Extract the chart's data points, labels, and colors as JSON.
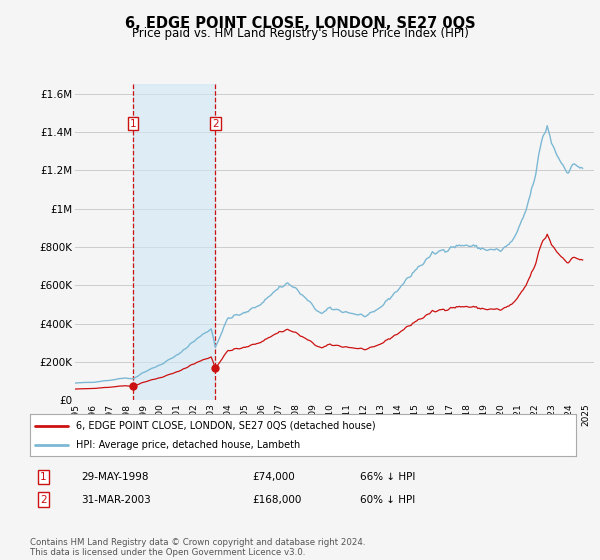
{
  "title": "6, EDGE POINT CLOSE, LONDON, SE27 0QS",
  "subtitle": "Price paid vs. HM Land Registry's House Price Index (HPI)",
  "background_color": "#f5f5f5",
  "plot_background": "#f5f5f5",
  "grid_color": "#cccccc",
  "hpi_color": "#7bb8d4",
  "price_color": "#cc1111",
  "vline_color": "#cc1111",
  "shade_color": "#d0e8f5",
  "ylim_min": 0,
  "ylim_max": 1650000,
  "yticks": [
    0,
    200000,
    400000,
    600000,
    800000,
    1000000,
    1200000,
    1400000,
    1600000
  ],
  "ytick_labels": [
    "£0",
    "£200K",
    "£400K",
    "£600K",
    "£800K",
    "£1M",
    "£1.2M",
    "£1.4M",
    "£1.6M"
  ],
  "xmin": 1995.0,
  "xmax": 2025.5,
  "sale1_x": 1998.41,
  "sale1_y": 74000,
  "sale1_label": "1",
  "sale1_date": "29-MAY-1998",
  "sale1_price": "£74,000",
  "sale1_hpi": "66% ↓ HPI",
  "sale2_x": 2003.25,
  "sale2_y": 168000,
  "sale2_label": "2",
  "sale2_date": "31-MAR-2003",
  "sale2_price": "£168,000",
  "sale2_hpi": "60% ↓ HPI",
  "legend_line1": "6, EDGE POINT CLOSE, LONDON, SE27 0QS (detached house)",
  "legend_line2": "HPI: Average price, detached house, Lambeth",
  "footnote": "Contains HM Land Registry data © Crown copyright and database right 2024.\nThis data is licensed under the Open Government Licence v3.0."
}
